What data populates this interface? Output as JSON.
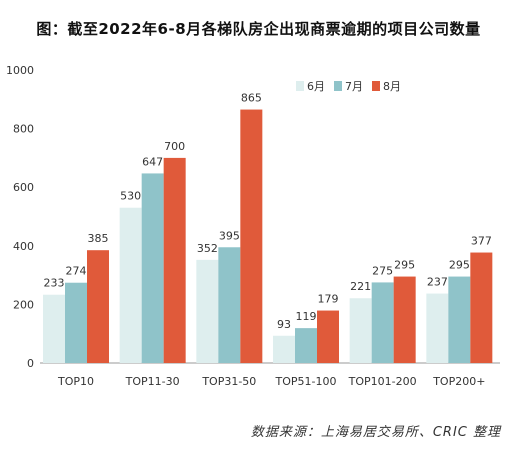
{
  "chart_data": {
    "type": "bar",
    "title": "图：截至2022年6-8月各梯队房企出现商票逾期的项目公司数量",
    "xlabel": "",
    "ylabel": "",
    "ylim": [
      0,
      1000
    ],
    "yticks": [
      0,
      200,
      400,
      600,
      800,
      1000
    ],
    "grid": false,
    "legend_position": "top-right",
    "categories": [
      "TOP10",
      "TOP11-30",
      "TOP31-50",
      "TOP51-100",
      "TOP101-200",
      "TOP200+"
    ],
    "series": [
      {
        "name": "6月",
        "color": "#deeeee",
        "values": [
          233,
          530,
          352,
          93,
          221,
          237
        ]
      },
      {
        "name": "7月",
        "color": "#8fc3c9",
        "values": [
          274,
          647,
          395,
          119,
          275,
          295
        ]
      },
      {
        "name": "8月",
        "color": "#e05a3a",
        "values": [
          385,
          700,
          865,
          179,
          295,
          377
        ]
      }
    ]
  },
  "source_note": "数据来源：上海易居交易所、CRIC 整理"
}
